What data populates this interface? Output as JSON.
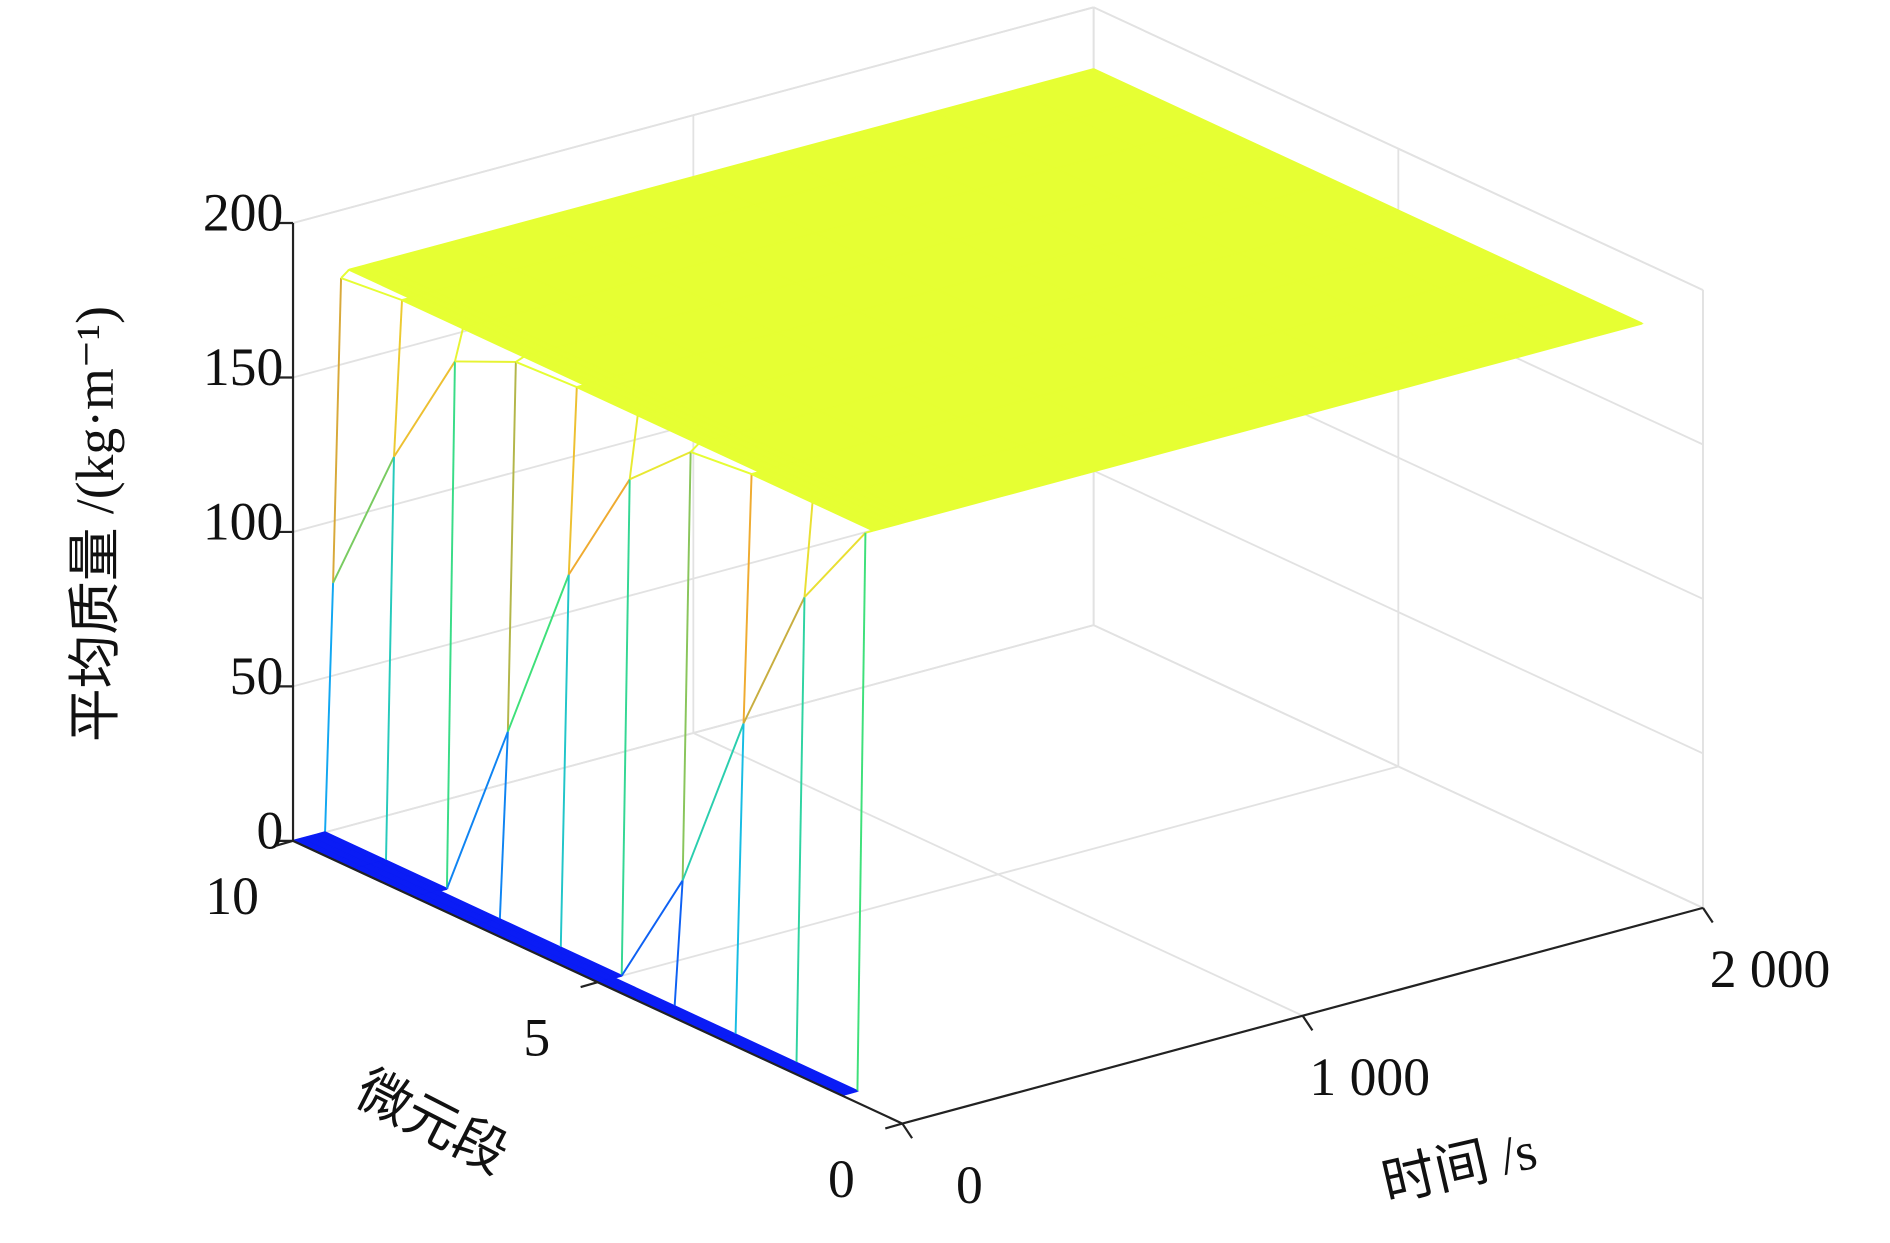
{
  "chart_data": {
    "type": "mesh3d",
    "x_label": "微元段",
    "y_label": "时间 /s",
    "z_label": "平均质量 /(kg·m⁻¹)",
    "segments": [
      1,
      2,
      3,
      4,
      5,
      6,
      7,
      8,
      9,
      10
    ],
    "times": [
      0,
      20,
      40,
      60,
      80,
      100,
      120,
      140,
      160,
      180,
      200,
      400,
      600,
      800,
      1000,
      1200,
      1400,
      1600,
      1800,
      2000
    ],
    "z": [
      [
        0,
        0,
        0,
        180,
        180,
        180,
        180,
        180,
        180,
        180,
        180,
        180,
        180,
        180,
        180,
        180,
        180,
        180,
        180,
        180
      ],
      [
        0,
        0,
        0,
        150,
        180,
        180,
        180,
        180,
        180,
        180,
        180,
        180,
        180,
        180,
        180,
        180,
        180,
        180,
        180,
        180
      ],
      [
        0,
        0,
        0,
        100,
        180,
        180,
        180,
        180,
        180,
        180,
        180,
        180,
        180,
        180,
        180,
        180,
        180,
        180,
        180,
        180
      ],
      [
        0,
        0,
        0,
        40,
        178,
        180,
        180,
        180,
        180,
        180,
        180,
        180,
        180,
        180,
        180,
        180,
        180,
        180,
        180,
        180
      ],
      [
        0,
        0,
        0,
        0,
        160,
        180,
        180,
        180,
        180,
        180,
        180,
        180,
        180,
        180,
        180,
        180,
        180,
        180,
        180,
        180
      ],
      [
        0,
        0,
        0,
        0,
        120,
        180,
        180,
        180,
        180,
        180,
        180,
        180,
        180,
        180,
        180,
        180,
        180,
        180,
        180,
        180
      ],
      [
        0,
        0,
        0,
        0,
        60,
        179,
        180,
        180,
        180,
        180,
        180,
        180,
        180,
        180,
        180,
        180,
        180,
        180,
        180,
        180
      ],
      [
        0,
        0,
        0,
        0,
        0,
        170,
        180,
        180,
        180,
        180,
        180,
        180,
        180,
        180,
        180,
        180,
        180,
        180,
        180,
        180
      ],
      [
        0,
        0,
        0,
        0,
        0,
        130,
        180,
        180,
        180,
        180,
        180,
        180,
        180,
        180,
        180,
        180,
        180,
        180,
        180,
        180
      ],
      [
        0,
        0,
        0,
        0,
        0,
        80,
        178,
        180,
        180,
        180,
        180,
        180,
        180,
        180,
        180,
        180,
        180,
        180,
        180,
        180
      ]
    ],
    "xlim": [
      0,
      10
    ],
    "xticks": [
      0,
      5,
      10
    ],
    "ylim": [
      0,
      2000
    ],
    "yticks": [
      0,
      {
        "value": 1000,
        "label": "1 000"
      },
      {
        "value": 2000,
        "label": "2 000"
      }
    ],
    "zlim": [
      0,
      200
    ],
    "zticks": [
      0,
      50,
      100,
      150,
      200
    ],
    "clim": [
      0,
      180
    ],
    "colormap": [
      "#0a1cf5",
      "#12b8f0",
      "#3ee07a",
      "#f0a030",
      "#e6ff33"
    ],
    "grid": true
  }
}
